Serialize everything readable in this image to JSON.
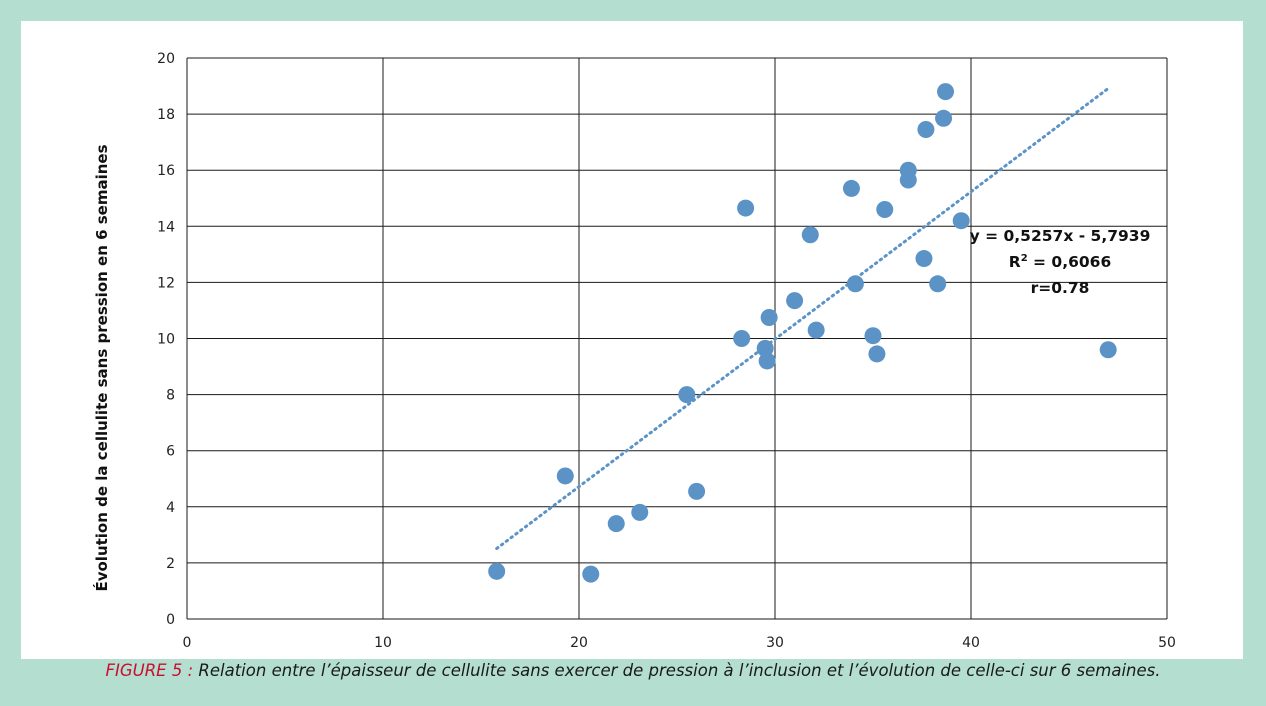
{
  "chart_data": {
    "type": "scatter",
    "title": "",
    "xlabel": "",
    "ylabel": "Évolution de la cellulite sans pression en 6 semaines",
    "xlim": [
      0,
      50
    ],
    "ylim": [
      0,
      20
    ],
    "xticks": [
      0,
      10,
      20,
      30,
      40,
      50
    ],
    "yticks": [
      0,
      2,
      4,
      6,
      8,
      10,
      12,
      14,
      16,
      18,
      20
    ],
    "grid": true,
    "legend": "none",
    "series": [
      {
        "color": "#5b93c7",
        "points": [
          {
            "x": 15.8,
            "y": 1.7
          },
          {
            "x": 19.3,
            "y": 5.1
          },
          {
            "x": 20.6,
            "y": 1.6
          },
          {
            "x": 21.9,
            "y": 3.4
          },
          {
            "x": 23.1,
            "y": 3.8
          },
          {
            "x": 25.5,
            "y": 8.0
          },
          {
            "x": 26.0,
            "y": 4.55
          },
          {
            "x": 28.3,
            "y": 10.0
          },
          {
            "x": 28.5,
            "y": 14.65
          },
          {
            "x": 29.5,
            "y": 9.65
          },
          {
            "x": 29.6,
            "y": 9.2
          },
          {
            "x": 29.7,
            "y": 10.75
          },
          {
            "x": 31.0,
            "y": 11.35
          },
          {
            "x": 31.8,
            "y": 13.7
          },
          {
            "x": 32.1,
            "y": 10.3
          },
          {
            "x": 33.9,
            "y": 15.35
          },
          {
            "x": 34.1,
            "y": 11.95
          },
          {
            "x": 35.0,
            "y": 10.1
          },
          {
            "x": 35.2,
            "y": 9.45
          },
          {
            "x": 35.6,
            "y": 14.6
          },
          {
            "x": 36.8,
            "y": 15.65
          },
          {
            "x": 36.8,
            "y": 16.0
          },
          {
            "x": 37.6,
            "y": 12.85
          },
          {
            "x": 37.7,
            "y": 17.45
          },
          {
            "x": 38.3,
            "y": 11.95
          },
          {
            "x": 38.6,
            "y": 17.85
          },
          {
            "x": 38.7,
            "y": 18.8
          },
          {
            "x": 39.5,
            "y": 14.2
          },
          {
            "x": 47.0,
            "y": 9.6
          }
        ]
      }
    ],
    "trendline": {
      "type": "linear",
      "slope": 0.5257,
      "intercept": -5.7939,
      "x_range": [
        15.8,
        47.0
      ],
      "color": "#5b93c7",
      "style": "dotted"
    },
    "annotations": {
      "equation": "y = 0,5257x - 5,7939",
      "r2_prefix": "R",
      "r2_exponent": "2",
      "r2_value": " = 0,6066",
      "r": "r=0.78"
    }
  },
  "caption": {
    "label": "FIGURE 5 :",
    "text": " Relation entre l’épaisseur de cellulite sans exercer de pression à l’inclusion et l’évolution de celle-ci sur 6 semaines."
  },
  "colors": {
    "frame": "#b3ded0",
    "caption_label": "#c8102e",
    "grid": "#1a1a1a"
  }
}
